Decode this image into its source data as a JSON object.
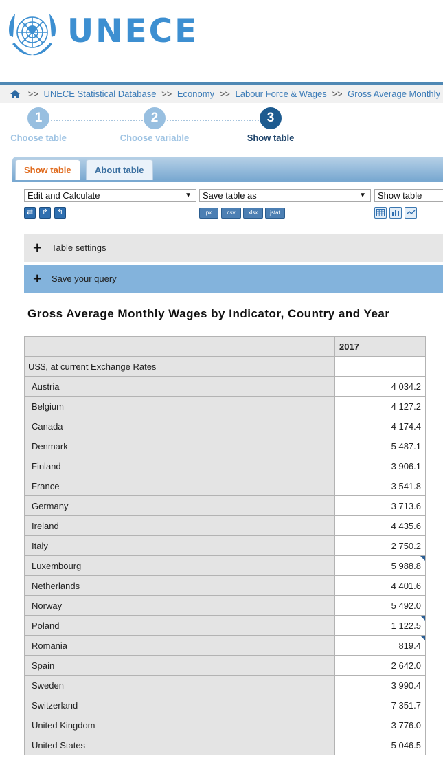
{
  "header": {
    "brand": "UNECE",
    "logo_icon": "un-emblem-icon"
  },
  "breadcrumb": {
    "home_icon": "home-icon",
    "separator": ">>",
    "items": [
      "UNECE Statistical Database",
      "Economy",
      "Labour Force & Wages",
      "Gross Average Monthly W"
    ]
  },
  "steps": [
    {
      "number": "1",
      "label": "Choose table"
    },
    {
      "number": "2",
      "label": "Choose variable"
    },
    {
      "number": "3",
      "label": "Show table"
    }
  ],
  "tabs": {
    "show": "Show table",
    "about": "About table"
  },
  "toolbar": {
    "edit_select": "Edit and Calculate",
    "save_select": "Save table as",
    "show_select": "Show table",
    "formats": [
      "px",
      "csv",
      "xlsx",
      "jstat"
    ]
  },
  "panels": {
    "settings": "Table settings",
    "save_query": "Save your query"
  },
  "table": {
    "title": "Gross Average Monthly Wages by Indicator, Country and Year",
    "year": "2017",
    "unit": "US$, at current Exchange Rates",
    "rows": [
      {
        "country": "Austria",
        "value": "4 034.2",
        "flag": false
      },
      {
        "country": "Belgium",
        "value": "4 127.2",
        "flag": false
      },
      {
        "country": "Canada",
        "value": "4 174.4",
        "flag": false
      },
      {
        "country": "Denmark",
        "value": "5 487.1",
        "flag": false
      },
      {
        "country": "Finland",
        "value": "3 906.1",
        "flag": false
      },
      {
        "country": "France",
        "value": "3 541.8",
        "flag": false
      },
      {
        "country": "Germany",
        "value": "3 713.6",
        "flag": false
      },
      {
        "country": "Ireland",
        "value": "4 435.6",
        "flag": false
      },
      {
        "country": "Italy",
        "value": "2 750.2",
        "flag": false
      },
      {
        "country": "Luxembourg",
        "value": "5 988.8",
        "flag": true
      },
      {
        "country": "Netherlands",
        "value": "4 401.6",
        "flag": false
      },
      {
        "country": "Norway",
        "value": "5 492.0",
        "flag": false
      },
      {
        "country": "Poland",
        "value": "1 122.5",
        "flag": true
      },
      {
        "country": "Romania",
        "value": "819.4",
        "flag": true
      },
      {
        "country": "Spain",
        "value": "2 642.0",
        "flag": false
      },
      {
        "country": "Sweden",
        "value": "3 990.4",
        "flag": false
      },
      {
        "country": "Switzerland",
        "value": "7 351.7",
        "flag": false
      },
      {
        "country": "United Kingdom",
        "value": "3 776.0",
        "flag": false
      },
      {
        "country": "United States",
        "value": "5 046.5",
        "flag": false
      }
    ]
  },
  "colors": {
    "brand": "#3d8fd1",
    "accent_tab": "#e06a1c",
    "step_active": "#1d5b90",
    "step_done": "#98bfe0"
  }
}
